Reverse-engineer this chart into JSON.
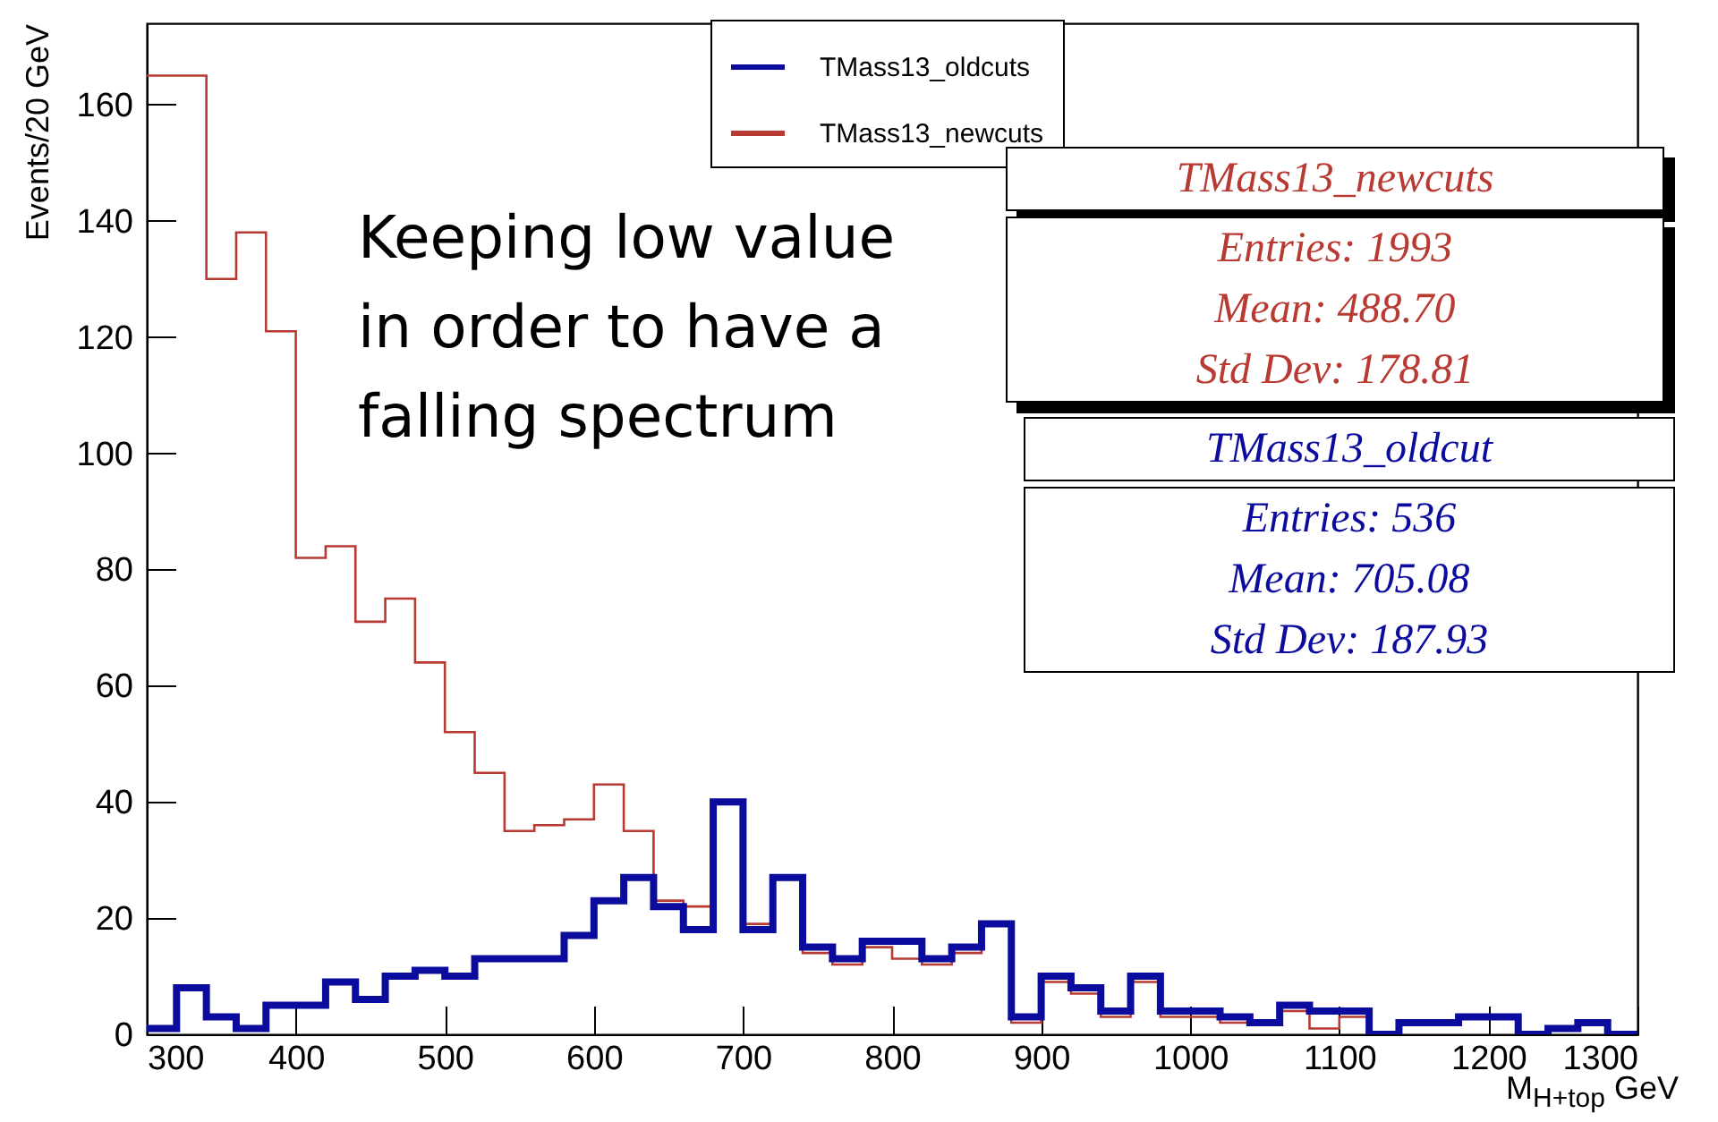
{
  "chart_data": {
    "type": "histogram",
    "xlabel": "M$_{H+top}$ GeV",
    "ylabel": "Events/20 GeV",
    "bins": [
      300,
      320,
      340,
      360,
      380,
      400,
      420,
      440,
      460,
      480,
      500,
      520,
      540,
      560,
      580,
      600,
      620,
      640,
      660,
      680,
      700,
      720,
      740,
      760,
      780,
      800,
      820,
      840,
      860,
      880,
      900,
      920,
      940,
      960,
      980,
      1000,
      1020,
      1040,
      1060,
      1080,
      1100,
      1120,
      1140,
      1160,
      1180,
      1200,
      1220,
      1240,
      1260,
      1280,
      1300
    ],
    "series": [
      {
        "name": "TMass13_oldcuts",
        "color": "#0b0b9e",
        "values": [
          1,
          8,
          3,
          1,
          5,
          5,
          9,
          6,
          10,
          11,
          10,
          13,
          13,
          13,
          17,
          23,
          27,
          22,
          18,
          40,
          18,
          27,
          15,
          13,
          16,
          16,
          13,
          15,
          19,
          3,
          10,
          8,
          4,
          10,
          4,
          4,
          3,
          2,
          5,
          4,
          4,
          0,
          2,
          2,
          3,
          3,
          0,
          1,
          2,
          0
        ]
      },
      {
        "name": "TMass13_newcuts",
        "color": "#b83a32",
        "values": [
          165,
          165,
          130,
          138,
          121,
          82,
          84,
          71,
          75,
          64,
          52,
          45,
          35,
          36,
          37,
          43,
          35,
          23,
          22,
          40,
          19,
          27,
          14,
          12,
          15,
          13,
          12,
          14,
          19,
          2,
          9,
          7,
          3,
          9,
          3,
          3,
          2,
          2,
          4,
          1,
          3,
          0,
          2,
          2,
          3,
          3,
          0,
          1,
          2,
          0
        ]
      }
    ],
    "xlim": [
      300,
      1300
    ],
    "xticks": [
      300,
      400,
      500,
      600,
      700,
      800,
      900,
      1000,
      1100,
      1200,
      1300
    ],
    "ylim": [
      0,
      174
    ],
    "yticks": [
      0,
      20,
      40,
      60,
      80,
      100,
      120,
      140,
      160
    ],
    "legend": "top",
    "annotations": [
      "Keeping low value\nin order to have a\nfalling spectrum",
      "TMass13_newcuts",
      "Entries: 1993",
      "Mean: 488.70",
      "Std Dev: 178.81",
      "TMass13_oldcut",
      "Entries: 536",
      "Mean: 705.08",
      "Std Dev: 187.93"
    ]
  }
}
